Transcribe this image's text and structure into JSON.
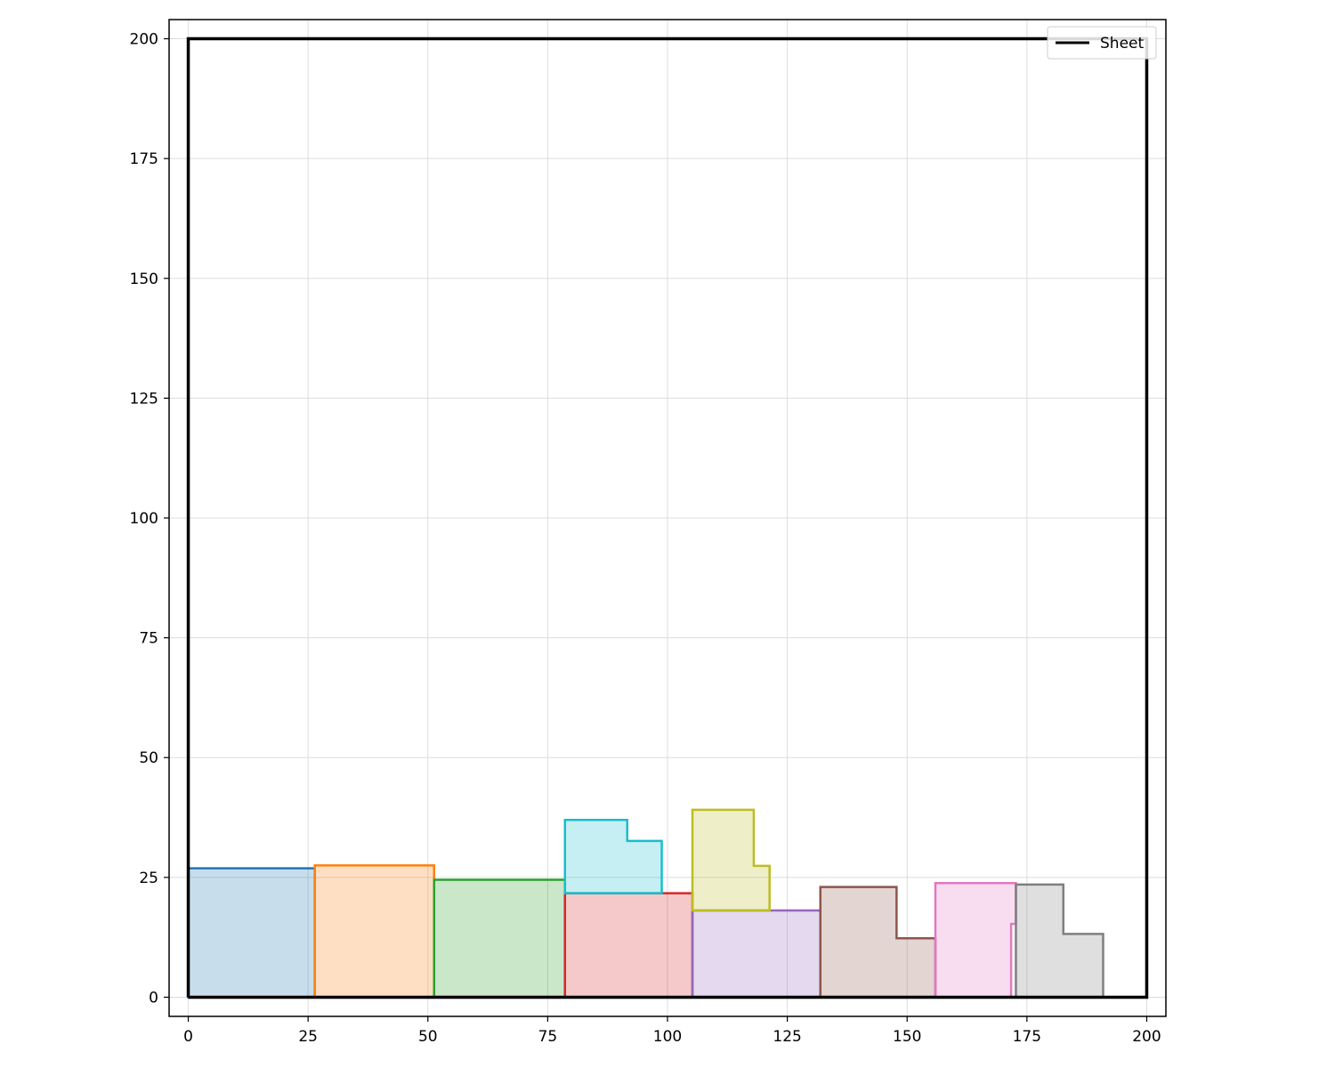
{
  "chart_data": {
    "type": "area",
    "title": "",
    "xlabel": "",
    "ylabel": "",
    "xlim": [
      -4,
      204
    ],
    "ylim": [
      -4,
      204
    ],
    "xticks": [
      0,
      25,
      50,
      75,
      100,
      125,
      150,
      175,
      200
    ],
    "yticks": [
      0,
      25,
      50,
      75,
      100,
      125,
      150,
      175,
      200
    ],
    "grid": true,
    "legend": {
      "placement": "top-right",
      "entries": [
        {
          "label": "Sheet",
          "color": "#000000"
        }
      ]
    },
    "sheet": {
      "name": "Sheet",
      "color": "#000000",
      "points": [
        [
          0,
          0
        ],
        [
          200,
          0
        ],
        [
          200,
          200
        ],
        [
          0,
          200
        ],
        [
          0,
          0
        ]
      ]
    },
    "pieces": [
      {
        "color": "#1f77b4",
        "points": [
          [
            0,
            0
          ],
          [
            26.4,
            0
          ],
          [
            26.4,
            26.9
          ],
          [
            0,
            26.9
          ]
        ]
      },
      {
        "color": "#ff7f0e",
        "points": [
          [
            26.4,
            0
          ],
          [
            51.3,
            0
          ],
          [
            51.3,
            27.5
          ],
          [
            26.4,
            27.5
          ]
        ]
      },
      {
        "color": "#2ca02c",
        "points": [
          [
            51.3,
            0
          ],
          [
            78.6,
            0
          ],
          [
            78.6,
            24.5
          ],
          [
            51.3,
            24.5
          ]
        ]
      },
      {
        "color": "#d62728",
        "points": [
          [
            78.6,
            0
          ],
          [
            105.2,
            0
          ],
          [
            105.2,
            21.7
          ],
          [
            78.6,
            21.7
          ]
        ]
      },
      {
        "color": "#9467bd",
        "points": [
          [
            105.2,
            0
          ],
          [
            131.9,
            0
          ],
          [
            131.9,
            18.1
          ],
          [
            105.2,
            18.1
          ]
        ]
      },
      {
        "color": "#8c564b",
        "points": [
          [
            131.9,
            0
          ],
          [
            155.9,
            0
          ],
          [
            155.9,
            12.3
          ],
          [
            147.8,
            12.3
          ],
          [
            147.8,
            23.0
          ],
          [
            131.9,
            23.0
          ]
        ]
      },
      {
        "color": "#e377c2",
        "points": [
          [
            155.9,
            0
          ],
          [
            171.7,
            0
          ],
          [
            171.7,
            15.3
          ],
          [
            172.7,
            15.3
          ],
          [
            172.7,
            23.8
          ],
          [
            155.9,
            23.8
          ]
        ]
      },
      {
        "color": "#7f7f7f",
        "points": [
          [
            172.7,
            0
          ],
          [
            190.9,
            0
          ],
          [
            190.9,
            13.2
          ],
          [
            182.6,
            13.2
          ],
          [
            182.6,
            23.5
          ],
          [
            172.7,
            23.5
          ]
        ]
      },
      {
        "color": "#17becf",
        "points": [
          [
            78.6,
            21.7
          ],
          [
            98.8,
            21.7
          ],
          [
            98.8,
            32.6
          ],
          [
            91.6,
            32.6
          ],
          [
            91.6,
            37.0
          ],
          [
            78.6,
            37.0
          ]
        ]
      },
      {
        "color": "#bcbd22",
        "points": [
          [
            105.2,
            18.1
          ],
          [
            121.3,
            18.1
          ],
          [
            121.3,
            27.4
          ],
          [
            118.0,
            27.4
          ],
          [
            118.0,
            39.1
          ],
          [
            105.2,
            39.1
          ]
        ]
      }
    ]
  }
}
